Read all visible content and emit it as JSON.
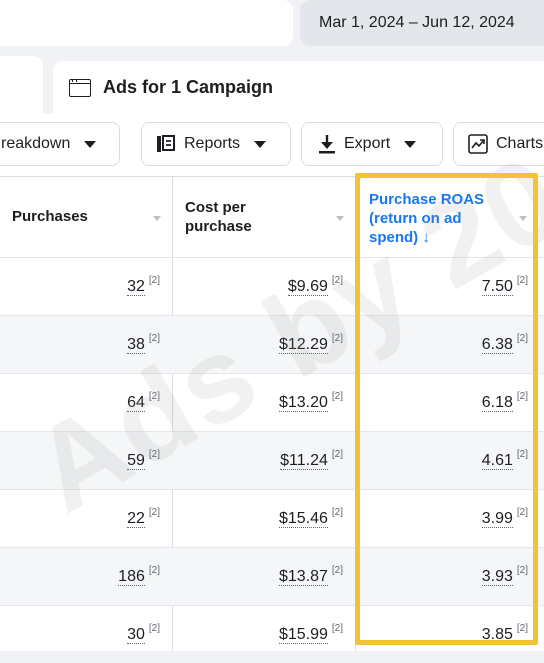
{
  "header": {
    "date_range": "Mar 1, 2024 – Jun 12, 2024"
  },
  "tabs": {
    "ads_label": "Ads for 1 Campaign"
  },
  "toolbar": {
    "breakdown_label": "reakdown",
    "reports_label": "Reports",
    "export_label": "Export",
    "charts_label": "Charts"
  },
  "table": {
    "columns": {
      "purchases": "Purchases",
      "cost_per_purchase": "Cost per purchase",
      "roas": "Purchase ROAS (return on ad spend) ↓"
    },
    "footnote_marker": "[2]",
    "rows": [
      {
        "purchases": "32",
        "cost": "$9.69",
        "roas": "7.50"
      },
      {
        "purchases": "38",
        "cost": "$12.29",
        "roas": "6.38"
      },
      {
        "purchases": "64",
        "cost": "$13.20",
        "roas": "6.18"
      },
      {
        "purchases": "59",
        "cost": "$11.24",
        "roas": "4.61"
      },
      {
        "purchases": "22",
        "cost": "$15.46",
        "roas": "3.99"
      },
      {
        "purchases": "186",
        "cost": "$13.87",
        "roas": "3.93"
      },
      {
        "purchases": "30",
        "cost": "$15.99",
        "roas": "3.85"
      }
    ]
  },
  "watermark": "Ads by 20",
  "colors": {
    "highlight": "#f2c23a",
    "link_blue": "#1877f2"
  }
}
